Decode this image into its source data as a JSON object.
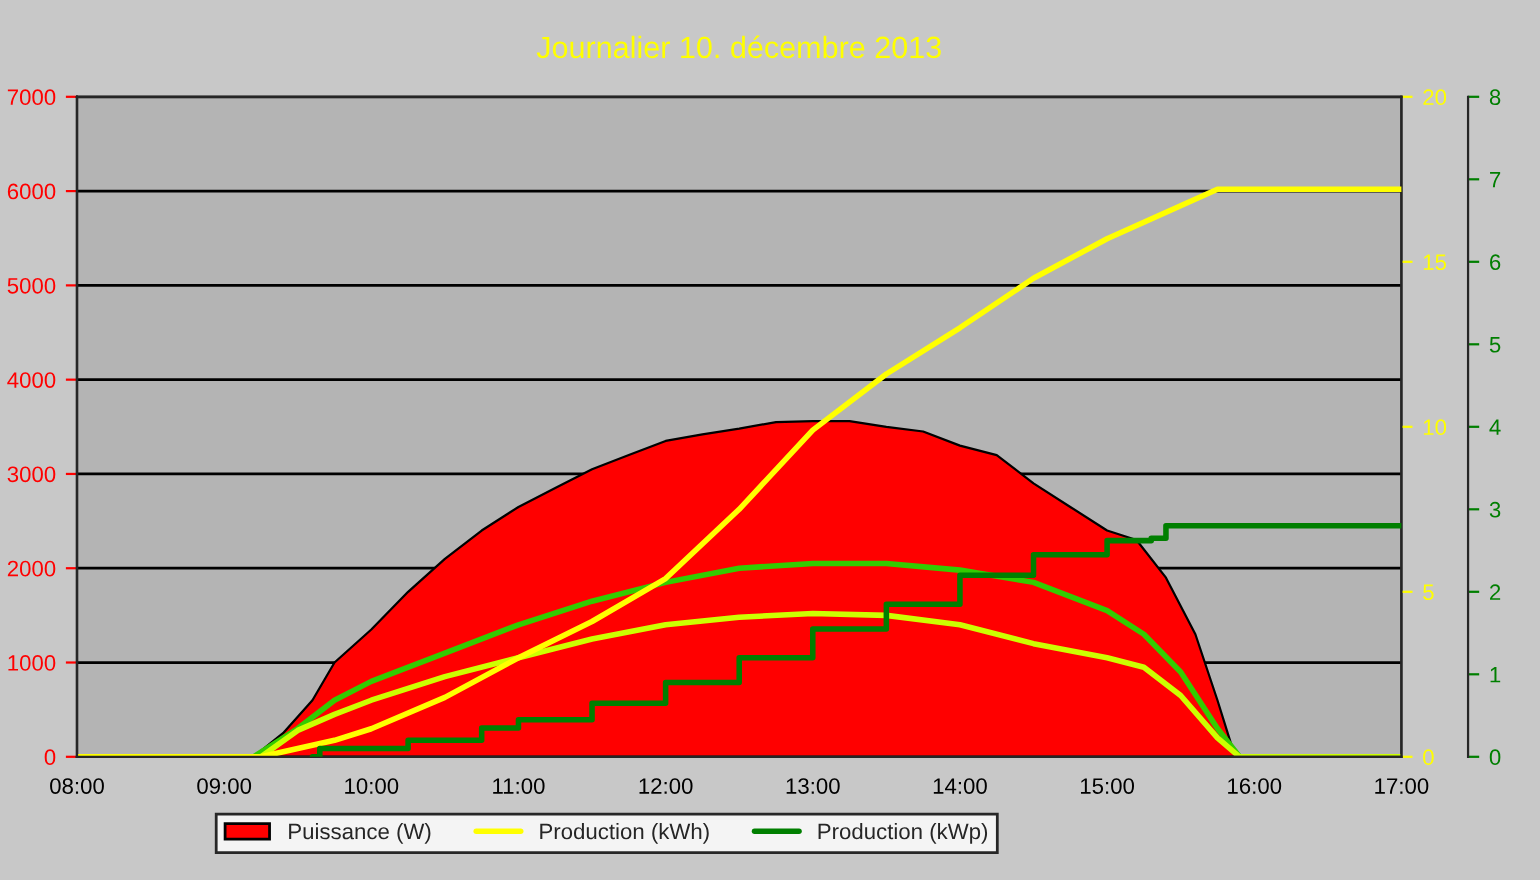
{
  "chart_data": {
    "type": "line",
    "title": "Journalier 10. décembre 2013",
    "xlim": [
      8,
      17
    ],
    "xticks": [
      {
        "value": 8,
        "label": "08:00"
      },
      {
        "value": 9,
        "label": "09:00"
      },
      {
        "value": 10,
        "label": "10:00"
      },
      {
        "value": 11,
        "label": "11:00"
      },
      {
        "value": 12,
        "label": "12:00"
      },
      {
        "value": 13,
        "label": "13:00"
      },
      {
        "value": 14,
        "label": "14:00"
      },
      {
        "value": 15,
        "label": "15:00"
      },
      {
        "value": 16,
        "label": "16:00"
      },
      {
        "value": 17,
        "label": "17:00"
      }
    ],
    "ylim": [
      0,
      7000
    ],
    "yticks": [
      0,
      1000,
      2000,
      3000,
      4000,
      5000,
      6000,
      7000
    ],
    "y2lim": [
      0,
      20
    ],
    "y2ticks": [
      0,
      5,
      10,
      15,
      20
    ],
    "y3lim": [
      0,
      8
    ],
    "y3ticks": [
      0,
      1,
      2,
      3,
      4,
      5,
      6,
      7,
      8
    ],
    "grid": "y",
    "legend": "bottom",
    "series": [
      {
        "name": "Puissance (W)",
        "type": "area",
        "color": "#ff0000",
        "x": [
          8,
          9.2,
          9.4,
          9.6,
          9.75,
          10,
          10.25,
          10.5,
          10.75,
          11,
          11.25,
          11.5,
          11.75,
          12,
          12.25,
          12.5,
          12.75,
          13,
          13.25,
          13.5,
          13.75,
          14,
          14.25,
          14.5,
          14.75,
          15,
          15.2,
          15.4,
          15.6,
          15.75,
          15.85,
          15.9,
          17
        ],
        "values": [
          0,
          0,
          250,
          600,
          1000,
          1350,
          1750,
          2100,
          2400,
          2650,
          2850,
          3050,
          3200,
          3350,
          3420,
          3480,
          3550,
          3560,
          3560,
          3500,
          3450,
          3300,
          3200,
          2900,
          2650,
          2400,
          2300,
          1900,
          1300,
          600,
          100,
          0,
          0
        ]
      },
      {
        "name": "Production (kWh)",
        "axis": "y2",
        "color": "#ffff00",
        "x": [
          8,
          9.25,
          9.75,
          10,
          10.5,
          11,
          11.5,
          12,
          12.5,
          13,
          13.5,
          14,
          14.5,
          15,
          15.75,
          17
        ],
        "values": [
          0,
          0,
          0.5,
          0.85,
          1.8,
          3.0,
          4.1,
          5.4,
          7.5,
          9.9,
          11.6,
          13.0,
          14.5,
          15.7,
          17.2,
          17.2
        ]
      },
      {
        "name": "Production (kWp)",
        "type": "step",
        "axis": "y3",
        "color": "#007f00",
        "x": [
          9.6,
          9.65,
          10.25,
          10.75,
          11,
          11.5,
          12,
          12.5,
          13,
          13.5,
          14,
          14.5,
          15,
          15.3,
          15.4,
          17
        ],
        "values": [
          0,
          0.1,
          0.2,
          0.35,
          0.45,
          0.65,
          0.9,
          1.2,
          1.55,
          1.85,
          2.2,
          2.45,
          2.62,
          2.65,
          2.8,
          2.8
        ]
      },
      {
        "color": "#33cc00",
        "x": [
          8,
          9.2,
          9.5,
          9.75,
          10,
          10.5,
          11,
          11.5,
          12,
          12.5,
          13,
          13.5,
          14,
          14.5,
          15,
          15.25,
          15.5,
          15.75,
          15.9,
          17
        ],
        "values": [
          0,
          0,
          300,
          600,
          800,
          1100,
          1400,
          1650,
          1850,
          2000,
          2050,
          2050,
          1980,
          1850,
          1550,
          1300,
          900,
          300,
          0,
          0
        ]
      },
      {
        "color": "#ccff00",
        "x": [
          8,
          9.25,
          9.5,
          9.75,
          10,
          10.5,
          11,
          11.5,
          12,
          12.5,
          13,
          13.5,
          14,
          14.5,
          15,
          15.25,
          15.5,
          15.75,
          15.9,
          17
        ],
        "values": [
          0,
          0,
          280,
          450,
          600,
          850,
          1050,
          1250,
          1400,
          1480,
          1520,
          1500,
          1400,
          1200,
          1050,
          950,
          650,
          200,
          0,
          0
        ]
      }
    ]
  }
}
